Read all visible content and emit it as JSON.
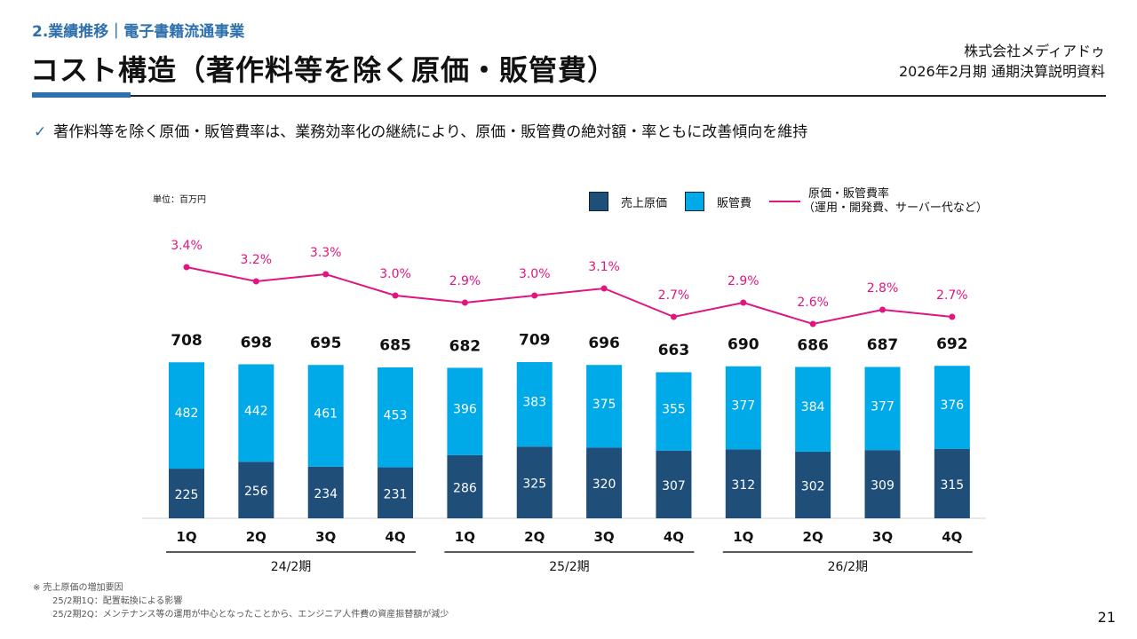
{
  "header": {
    "section": "2.業績推移｜電子書籍流通事業",
    "title": "コスト構造（著作料等を除く原価・販管費）",
    "company": "株式会社メディアドゥ",
    "document": "2026年2月期 通期決算説明資料"
  },
  "bullet": "著作料等を除く原価・販管費率は、業務効率化の継続により、原価・販管費の絶対額・率ともに改善傾向を維持",
  "footnote": {
    "heading": "※ 売上原価の増加要因",
    "lines": [
      "25/2期1Q：配置転換による影響",
      "25/2期2Q：メンテナンス等の運用が中心となったことから、エンジニア人件費の資産振替額が減少"
    ]
  },
  "page_number": "21",
  "chart_data": {
    "type": "bar",
    "stacked": true,
    "unit_label": "単位：百万円",
    "categories": [
      "1Q",
      "2Q",
      "3Q",
      "4Q",
      "1Q",
      "2Q",
      "3Q",
      "4Q",
      "1Q",
      "2Q",
      "3Q",
      "4Q"
    ],
    "groups": [
      {
        "label": "24/2期",
        "span": [
          0,
          3
        ]
      },
      {
        "label": "25/2期",
        "span": [
          4,
          7
        ]
      },
      {
        "label": "26/2期",
        "span": [
          8,
          11
        ]
      }
    ],
    "series": [
      {
        "name": "売上原価",
        "color": "#1f4e79",
        "values": [
          225,
          256,
          234,
          231,
          286,
          325,
          320,
          307,
          312,
          302,
          309,
          315
        ]
      },
      {
        "name": "販管費",
        "color": "#00a9e8",
        "values": [
          482,
          442,
          461,
          453,
          396,
          383,
          375,
          355,
          377,
          384,
          377,
          376
        ]
      }
    ],
    "totals": [
      708,
      698,
      695,
      685,
      682,
      709,
      696,
      663,
      690,
      686,
      687,
      692
    ],
    "line_series": {
      "name": "原価・販管費率",
      "name_sub": "（運用・開発費、サーバー代など）",
      "color": "#e0157f",
      "values": [
        3.4,
        3.2,
        3.3,
        3.0,
        2.9,
        3.0,
        3.1,
        2.7,
        2.9,
        2.6,
        2.8,
        2.7
      ],
      "labels": [
        "3.4%",
        "3.2%",
        "3.3%",
        "3.0%",
        "2.9%",
        "3.0%",
        "3.1%",
        "2.7%",
        "2.9%",
        "2.6%",
        "2.8%",
        "2.7%"
      ]
    },
    "legend_placement": "top-right",
    "grid": false
  }
}
